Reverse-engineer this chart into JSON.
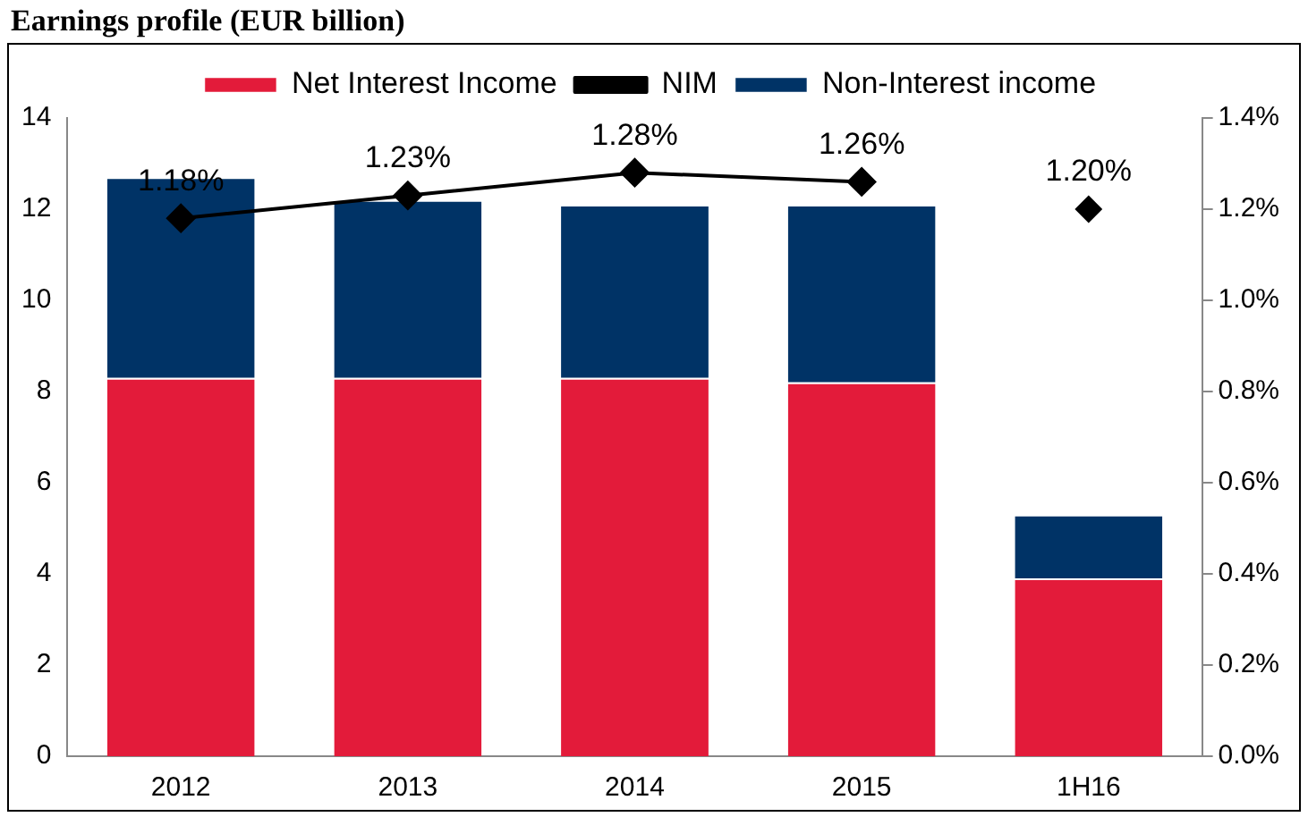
{
  "chart_data": {
    "type": "bar",
    "title": "Earnings profile (EUR billion)",
    "categories": [
      "2012",
      "2013",
      "2014",
      "2015",
      "1H16"
    ],
    "stacked": true,
    "series": [
      {
        "name": "Net Interest Income",
        "color": "#e31b3a",
        "values": [
          8.3,
          8.3,
          8.3,
          8.2,
          3.9
        ]
      },
      {
        "name": "Non-Interest income",
        "color": "#003366",
        "values": [
          4.4,
          3.9,
          3.8,
          3.9,
          1.4
        ]
      },
      {
        "name": "NIM",
        "type": "line",
        "axis": "y2",
        "color": "#000000",
        "marker": "diamond",
        "values": [
          1.18,
          1.23,
          1.28,
          1.26,
          null
        ],
        "value_labels": [
          "1.18%",
          "1.23%",
          "1.28%",
          "1.26%",
          null
        ]
      },
      {
        "type": "scatter",
        "axis": "y2",
        "color": "#000000",
        "marker": "diamond",
        "values": [
          null,
          null,
          null,
          null,
          1.2
        ],
        "value_labels": [
          null,
          null,
          null,
          null,
          "1.20%"
        ]
      }
    ],
    "ylim": [
      0,
      14
    ],
    "yticks": [
      0,
      2,
      4,
      6,
      8,
      10,
      12,
      14
    ],
    "y2lim": [
      0,
      1.4
    ],
    "y2ticks": [
      {
        "value": 0,
        "label": "0.0%"
      },
      {
        "value": 0.2,
        "label": "0.2%"
      },
      {
        "value": 0.4,
        "label": "0.4%"
      },
      {
        "value": 0.6,
        "label": "0.6%"
      },
      {
        "value": 0.8,
        "label": "0.8%"
      },
      {
        "value": 1.0,
        "label": "1.0%"
      },
      {
        "value": 1.2,
        "label": "1.2%"
      },
      {
        "value": 1.4,
        "label": "1.4%"
      }
    ],
    "grid": false,
    "legend": "top"
  }
}
